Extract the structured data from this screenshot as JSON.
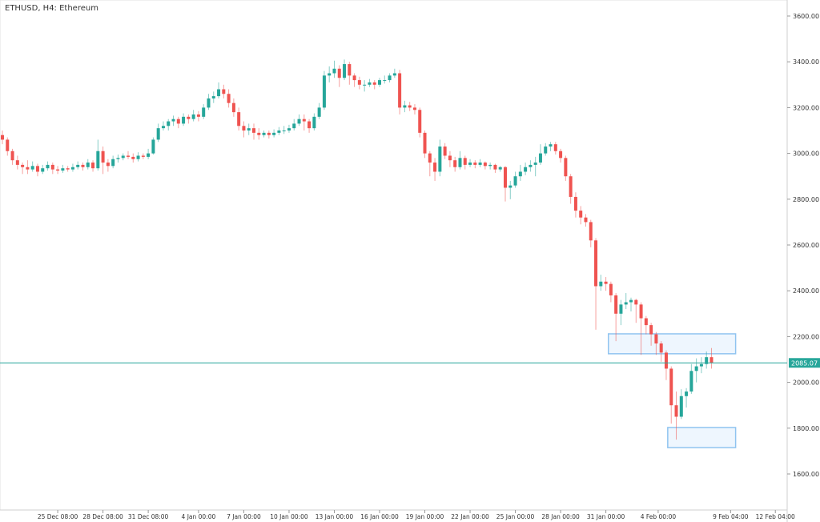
{
  "title": "ETHUSD, H4: Ethereum",
  "chart_data": {
    "type": "candlestick",
    "title": "ETHUSD, H4: Ethereum",
    "symbol": "ETHUSD",
    "timeframe": "H4",
    "ylim": [
      1450,
      3650
    ],
    "y_ticks": [
      "1600.00",
      "1800.00",
      "2000.00",
      "2200.00",
      "2400.00",
      "2600.00",
      "2800.00",
      "3000.00",
      "3200.00",
      "3400.00",
      "3600.00"
    ],
    "x_ticks": [
      "25 Dec 08:00",
      "28 Dec 08:00",
      "31 Dec 08:00",
      "4 Jan 00:00",
      "7 Jan 00:00",
      "10 Jan 00:00",
      "13 Jan 00:00",
      "16 Jan 00:00",
      "19 Jan 00:00",
      "22 Jan 00:00",
      "25 Jan 00:00",
      "28 Jan 00:00",
      "31 Jan 00:00",
      "4 Feb 00:00",
      "9 Feb 04:00",
      "12 Feb 04:00"
    ],
    "grid": false,
    "colors": {
      "up": "#26a69a",
      "down": "#ef5350",
      "last_price": "#26a69a",
      "zone_fill": "#eef6fe",
      "zone_border": "#90c4f0"
    },
    "last_price": "2085.07",
    "zones": [
      {
        "from": 2125,
        "to": 2212
      },
      {
        "from": 1715,
        "to": 1803
      }
    ],
    "ohlc": [
      [
        3080,
        3100,
        3040,
        3060
      ],
      [
        3060,
        3070,
        2990,
        3010
      ],
      [
        3010,
        3020,
        2950,
        2970
      ],
      [
        2970,
        2990,
        2930,
        2950
      ],
      [
        2950,
        2960,
        2910,
        2940
      ],
      [
        2940,
        2970,
        2910,
        2930
      ],
      [
        2930,
        2965,
        2920,
        2945
      ],
      [
        2945,
        2955,
        2900,
        2920
      ],
      [
        2920,
        2950,
        2910,
        2935
      ],
      [
        2935,
        2965,
        2925,
        2950
      ],
      [
        2950,
        2960,
        2910,
        2930
      ],
      [
        2930,
        2945,
        2910,
        2925
      ],
      [
        2925,
        2950,
        2915,
        2935
      ],
      [
        2935,
        2945,
        2920,
        2930
      ],
      [
        2930,
        2955,
        2920,
        2940
      ],
      [
        2940,
        2965,
        2930,
        2950
      ],
      [
        2950,
        2960,
        2925,
        2940
      ],
      [
        2940,
        2975,
        2930,
        2960
      ],
      [
        2960,
        2970,
        2920,
        2935
      ],
      [
        2935,
        3060,
        2925,
        3010
      ],
      [
        3010,
        3030,
        2910,
        2960
      ],
      [
        2960,
        2975,
        2920,
        2945
      ],
      [
        2945,
        2990,
        2935,
        2975
      ],
      [
        2975,
        2995,
        2960,
        2980
      ],
      [
        2980,
        3000,
        2970,
        2990
      ],
      [
        2990,
        3010,
        2975,
        2985
      ],
      [
        2985,
        3000,
        2960,
        2975
      ],
      [
        2975,
        3005,
        2965,
        2990
      ],
      [
        2990,
        3000,
        2975,
        2985
      ],
      [
        2985,
        3020,
        2975,
        3000
      ],
      [
        3000,
        3070,
        2995,
        3060
      ],
      [
        3060,
        3130,
        3050,
        3110
      ],
      [
        3110,
        3140,
        3100,
        3120
      ],
      [
        3120,
        3150,
        3100,
        3140
      ],
      [
        3140,
        3165,
        3120,
        3150
      ],
      [
        3150,
        3160,
        3110,
        3130
      ],
      [
        3130,
        3175,
        3120,
        3160
      ],
      [
        3160,
        3170,
        3130,
        3150
      ],
      [
        3150,
        3190,
        3140,
        3170
      ],
      [
        3170,
        3185,
        3140,
        3160
      ],
      [
        3160,
        3215,
        3150,
        3200
      ],
      [
        3200,
        3260,
        3190,
        3240
      ],
      [
        3240,
        3270,
        3220,
        3250
      ],
      [
        3250,
        3310,
        3240,
        3280
      ],
      [
        3280,
        3300,
        3240,
        3260
      ],
      [
        3260,
        3280,
        3200,
        3220
      ],
      [
        3220,
        3240,
        3160,
        3180
      ],
      [
        3180,
        3200,
        3100,
        3120
      ],
      [
        3120,
        3140,
        3070,
        3100
      ],
      [
        3100,
        3130,
        3080,
        3110
      ],
      [
        3110,
        3130,
        3060,
        3090
      ],
      [
        3090,
        3110,
        3060,
        3080
      ],
      [
        3080,
        3100,
        3070,
        3090
      ],
      [
        3090,
        3100,
        3065,
        3080
      ],
      [
        3080,
        3105,
        3070,
        3090
      ],
      [
        3090,
        3115,
        3080,
        3100
      ],
      [
        3100,
        3120,
        3085,
        3100
      ],
      [
        3100,
        3125,
        3090,
        3110
      ],
      [
        3110,
        3150,
        3100,
        3130
      ],
      [
        3130,
        3170,
        3120,
        3150
      ],
      [
        3150,
        3170,
        3100,
        3140
      ],
      [
        3140,
        3150,
        3090,
        3110
      ],
      [
        3110,
        3175,
        3100,
        3160
      ],
      [
        3160,
        3220,
        3150,
        3200
      ],
      [
        3200,
        3360,
        3190,
        3340
      ],
      [
        3340,
        3380,
        3310,
        3350
      ],
      [
        3350,
        3405,
        3330,
        3370
      ],
      [
        3370,
        3385,
        3290,
        3330
      ],
      [
        3330,
        3410,
        3320,
        3390
      ],
      [
        3390,
        3400,
        3300,
        3340
      ],
      [
        3340,
        3350,
        3290,
        3320
      ],
      [
        3320,
        3335,
        3280,
        3300
      ],
      [
        3300,
        3320,
        3270,
        3300
      ],
      [
        3300,
        3325,
        3290,
        3310
      ],
      [
        3310,
        3320,
        3280,
        3300
      ],
      [
        3300,
        3330,
        3290,
        3320
      ],
      [
        3320,
        3340,
        3305,
        3320
      ],
      [
        3320,
        3350,
        3310,
        3340
      ],
      [
        3340,
        3370,
        3330,
        3350
      ],
      [
        3350,
        3365,
        3170,
        3200
      ],
      [
        3200,
        3230,
        3180,
        3210
      ],
      [
        3210,
        3225,
        3185,
        3200
      ],
      [
        3200,
        3215,
        3170,
        3190
      ],
      [
        3190,
        3200,
        3070,
        3090
      ],
      [
        3090,
        3100,
        2980,
        3000
      ],
      [
        3000,
        3010,
        2900,
        2960
      ],
      [
        2960,
        2980,
        2880,
        2920
      ],
      [
        2920,
        3060,
        2900,
        3030
      ],
      [
        3030,
        3045,
        2975,
        2990
      ],
      [
        2990,
        3010,
        2940,
        2970
      ],
      [
        2970,
        2985,
        2920,
        2940
      ],
      [
        2940,
        3010,
        2930,
        2980
      ],
      [
        2980,
        2990,
        2930,
        2950
      ],
      [
        2950,
        2975,
        2940,
        2960
      ],
      [
        2960,
        2970,
        2935,
        2950
      ],
      [
        2950,
        2975,
        2940,
        2960
      ],
      [
        2960,
        2965,
        2930,
        2945
      ],
      [
        2945,
        2960,
        2930,
        2950
      ],
      [
        2950,
        2955,
        2915,
        2930
      ],
      [
        2930,
        2945,
        2920,
        2940
      ],
      [
        2940,
        2945,
        2790,
        2850
      ],
      [
        2850,
        2880,
        2800,
        2860
      ],
      [
        2860,
        2920,
        2850,
        2900
      ],
      [
        2900,
        2950,
        2880,
        2920
      ],
      [
        2920,
        2960,
        2905,
        2940
      ],
      [
        2940,
        2970,
        2920,
        2950
      ],
      [
        2950,
        2985,
        2900,
        2960
      ],
      [
        2960,
        3040,
        2950,
        3000
      ],
      [
        3000,
        3045,
        2990,
        3030
      ],
      [
        3030,
        3050,
        3010,
        3040
      ],
      [
        3040,
        3050,
        2995,
        3010
      ],
      [
        3010,
        3020,
        2960,
        2980
      ],
      [
        2980,
        2990,
        2880,
        2900
      ],
      [
        2900,
        2910,
        2780,
        2810
      ],
      [
        2810,
        2830,
        2720,
        2750
      ],
      [
        2750,
        2770,
        2690,
        2720
      ],
      [
        2720,
        2735,
        2680,
        2700
      ],
      [
        2700,
        2710,
        2590,
        2620
      ],
      [
        2620,
        2630,
        2230,
        2420
      ],
      [
        2420,
        2470,
        2400,
        2440
      ],
      [
        2440,
        2460,
        2400,
        2430
      ],
      [
        2430,
        2440,
        2350,
        2380
      ],
      [
        2380,
        2390,
        2180,
        2300
      ],
      [
        2300,
        2360,
        2250,
        2340
      ],
      [
        2340,
        2390,
        2320,
        2350
      ],
      [
        2350,
        2370,
        2310,
        2360
      ],
      [
        2360,
        2365,
        2260,
        2340
      ],
      [
        2340,
        2350,
        2120,
        2280
      ],
      [
        2280,
        2290,
        2210,
        2250
      ],
      [
        2250,
        2260,
        2160,
        2210
      ],
      [
        2210,
        2220,
        2120,
        2170
      ],
      [
        2170,
        2180,
        2090,
        2130
      ],
      [
        2130,
        2140,
        2010,
        2060
      ],
      [
        2060,
        2070,
        1820,
        1900
      ],
      [
        1900,
        1960,
        1750,
        1850
      ],
      [
        1850,
        1970,
        1840,
        1940
      ],
      [
        1940,
        1975,
        1890,
        1960
      ],
      [
        1960,
        2080,
        1950,
        2050
      ],
      [
        2050,
        2105,
        2000,
        2070
      ],
      [
        2070,
        2110,
        2040,
        2080
      ],
      [
        2080,
        2135,
        2060,
        2110
      ],
      [
        2110,
        2150,
        2060,
        2085.07
      ]
    ]
  }
}
